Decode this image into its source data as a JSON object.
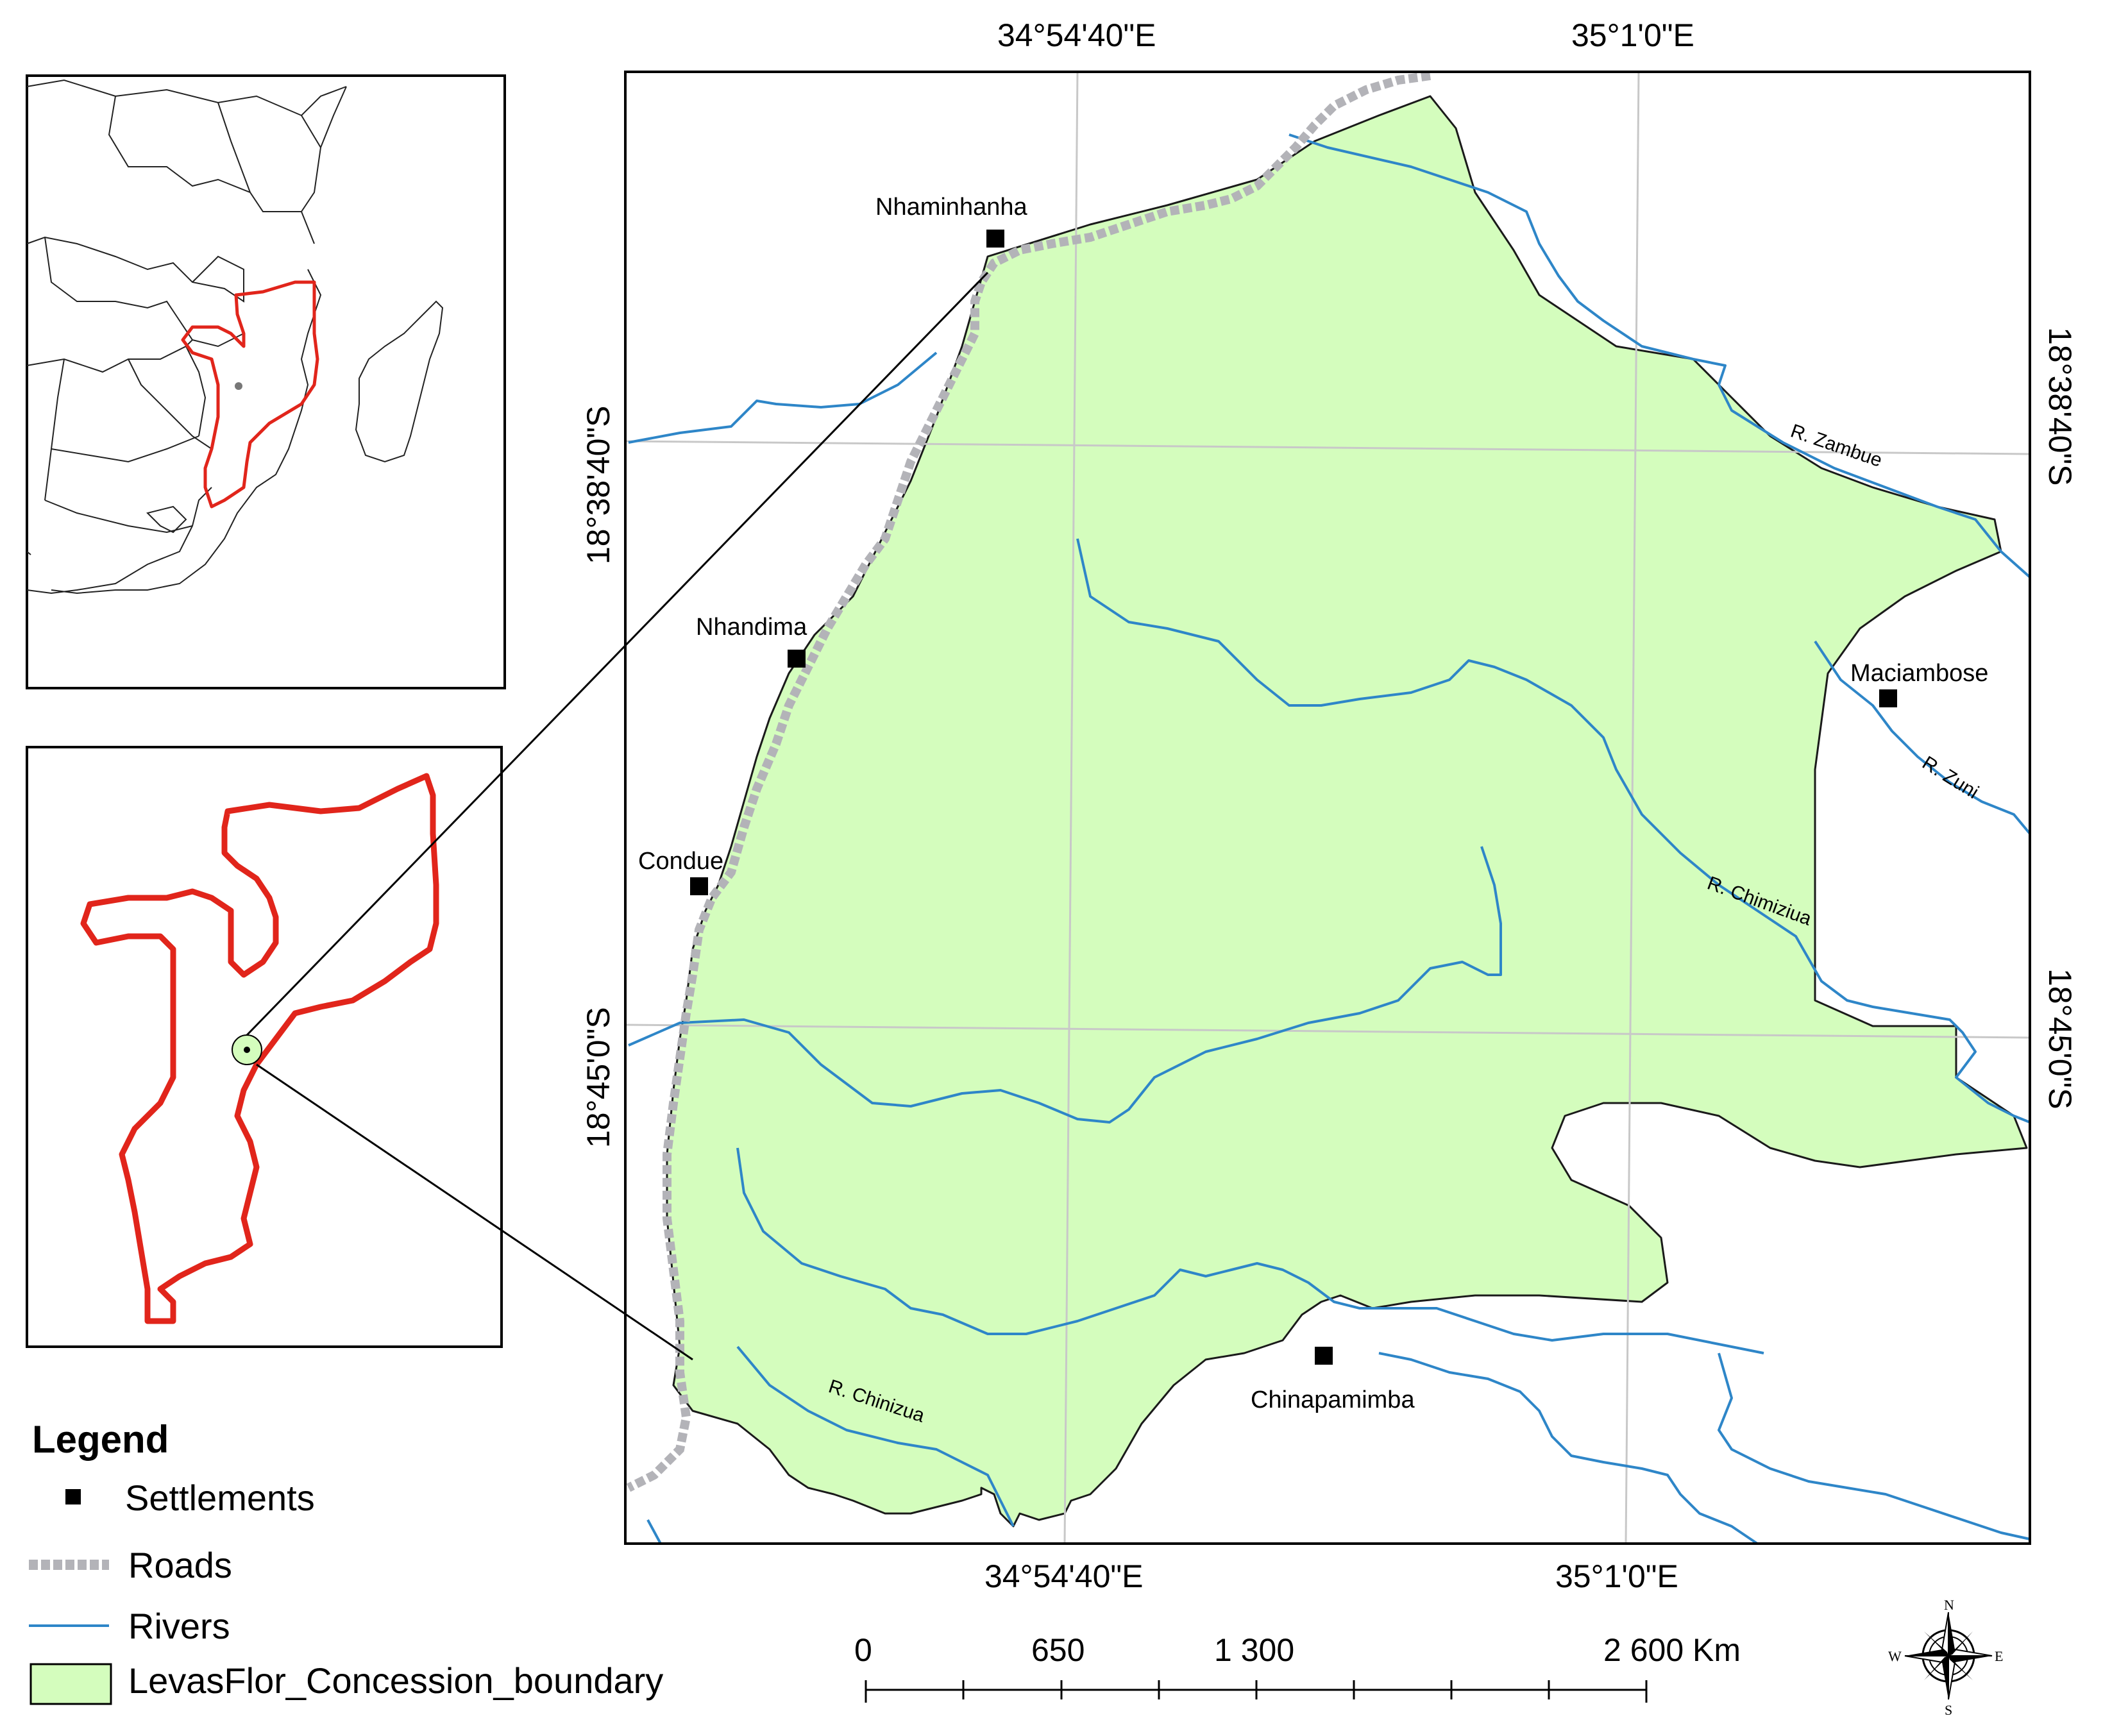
{
  "map": {
    "top_coords": [
      "34°54'40\"E",
      "35°1'0\"E"
    ],
    "bottom_coords": [
      "34°54'40\"E",
      "35°1'0\"E"
    ],
    "left_coords": [
      "18°38'40\"S",
      "18°45'0\"S"
    ],
    "right_coords": [
      "18°38'40\"S",
      "18°45'0\"S"
    ],
    "settlements": [
      "Nhaminhanha",
      "Nhandima",
      "Condue",
      "Maciambose",
      "Chinapamimba"
    ],
    "rivers": [
      "R. Zambue",
      "R. Zuni",
      "R. Chimiziua",
      "R. Chinizua"
    ],
    "colors": {
      "concession_fill": "#d4fdbd",
      "river": "#2e86c8",
      "road": "#b3b3b8",
      "country_outline": "#e1251b",
      "grid": "#c8c8c8"
    }
  },
  "legend": {
    "title": "Legend",
    "items": [
      {
        "label": "Settlements",
        "symbol": "black-square"
      },
      {
        "label": "Roads",
        "symbol": "grey-dashed-line"
      },
      {
        "label": "Rivers",
        "symbol": "blue-line"
      },
      {
        "label": "LevasFlor_Concession_boundary",
        "symbol": "green-fill"
      }
    ]
  },
  "scale_bar": {
    "labels": [
      "0",
      "650",
      "1 300",
      "2 600 Km"
    ]
  },
  "compass": {
    "n": "N",
    "s": "S",
    "e": "E",
    "w": "W"
  }
}
